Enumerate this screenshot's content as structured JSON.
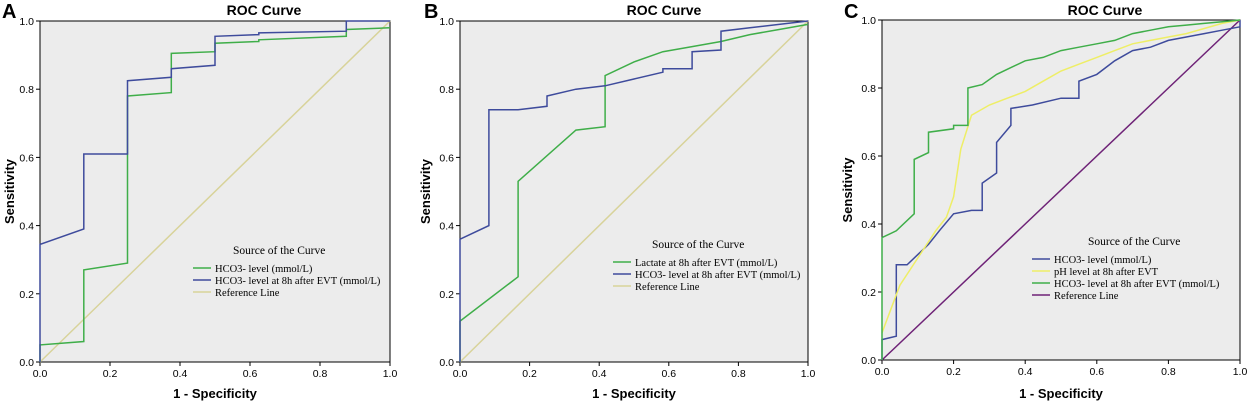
{
  "chart_data": [
    {
      "type": "line",
      "panel_label": "A",
      "title": "ROC Curve",
      "xlabel": "1 - Specificity",
      "ylabel": "Sensitivity",
      "xlim": [
        0,
        1
      ],
      "ylim": [
        0,
        1
      ],
      "xticks": [
        "0.0",
        "0.2",
        "0.4",
        "0.6",
        "0.8",
        "1.0"
      ],
      "yticks": [
        "0.0",
        "0.2",
        "0.4",
        "0.6",
        "0.8",
        "1.0"
      ],
      "legend_title": "Source of the Curve",
      "legend_position": "bottom-right",
      "background": "#ececec",
      "series": [
        {
          "name": "HCO3- level (mmol/L)",
          "color": "#3fae49",
          "x": [
            0,
            0,
            0.125,
            0.125,
            0.25,
            0.25,
            0.375,
            0.375,
            0.5,
            0.5,
            0.625,
            0.625,
            0.875,
            0.875,
            1.0
          ],
          "y": [
            0,
            0.05,
            0.06,
            0.27,
            0.29,
            0.78,
            0.79,
            0.905,
            0.91,
            0.935,
            0.94,
            0.945,
            0.955,
            0.975,
            0.98
          ]
        },
        {
          "name": "HCO3- level at 8h after EVT (mmol/L)",
          "color": "#3e4b9c",
          "x": [
            0,
            0,
            0.125,
            0.125,
            0.25,
            0.25,
            0.375,
            0.375,
            0.5,
            0.5,
            0.625,
            0.625,
            0.875,
            0.875,
            1.0
          ],
          "y": [
            0,
            0.345,
            0.39,
            0.61,
            0.61,
            0.825,
            0.835,
            0.86,
            0.87,
            0.955,
            0.96,
            0.965,
            0.97,
            1.0,
            1.0
          ]
        },
        {
          "name": "Reference Line",
          "color": "#d8d39a",
          "x": [
            0,
            1
          ],
          "y": [
            0,
            1
          ]
        }
      ]
    },
    {
      "type": "line",
      "panel_label": "B",
      "title": "ROC Curve",
      "xlabel": "1 - Specificity",
      "ylabel": "Sensitivity",
      "xlim": [
        0,
        1
      ],
      "ylim": [
        0,
        1
      ],
      "xticks": [
        "0.0",
        "0.2",
        "0.4",
        "0.6",
        "0.8",
        "1.0"
      ],
      "yticks": [
        "0.0",
        "0.2",
        "0.4",
        "0.6",
        "0.8",
        "1.0"
      ],
      "legend_title": "Source of the Curve",
      "legend_position": "bottom-right",
      "background": "#ececec",
      "series": [
        {
          "name": "Lactate at 8h after EVT (mmol/L)",
          "color": "#3fae49",
          "x": [
            0,
            0,
            0.167,
            0.167,
            0.333,
            0.417,
            0.417,
            0.5,
            0.583,
            0.667,
            0.75,
            0.833,
            0.917,
            1.0
          ],
          "y": [
            0,
            0.12,
            0.25,
            0.53,
            0.68,
            0.69,
            0.84,
            0.88,
            0.91,
            0.925,
            0.94,
            0.96,
            0.975,
            0.99
          ]
        },
        {
          "name": "HCO3- level at 8h after EVT (mmol/L)",
          "color": "#3e4b9c",
          "x": [
            0,
            0,
            0.083,
            0.083,
            0.167,
            0.25,
            0.25,
            0.333,
            0.417,
            0.5,
            0.583,
            0.583,
            0.667,
            0.667,
            0.75,
            0.75,
            0.833,
            1.0
          ],
          "y": [
            0,
            0.36,
            0.4,
            0.74,
            0.74,
            0.75,
            0.78,
            0.8,
            0.81,
            0.83,
            0.85,
            0.86,
            0.86,
            0.91,
            0.915,
            0.97,
            0.98,
            1.0
          ]
        },
        {
          "name": "Reference Line",
          "color": "#d8d39a",
          "x": [
            0,
            1
          ],
          "y": [
            0,
            1
          ]
        }
      ]
    },
    {
      "type": "line",
      "panel_label": "C",
      "title": "ROC Curve",
      "xlabel": "1 - Specificity",
      "ylabel": "Sensitivity",
      "xlim": [
        0,
        1
      ],
      "ylim": [
        0,
        1
      ],
      "xticks": [
        "0.0",
        "0.2",
        "0.4",
        "0.6",
        "0.8",
        "1.0"
      ],
      "yticks": [
        "0.0",
        "0.2",
        "0.4",
        "0.6",
        "0.8",
        "1.0"
      ],
      "legend_title": "Source of the Curve",
      "legend_position": "bottom-right",
      "background": "#ececec",
      "series": [
        {
          "name": "HCO3- level (mmol/L)",
          "color": "#3e4b9c",
          "x": [
            0,
            0,
            0.04,
            0.04,
            0.07,
            0.1,
            0.13,
            0.16,
            0.2,
            0.25,
            0.28,
            0.28,
            0.32,
            0.32,
            0.36,
            0.36,
            0.42,
            0.5,
            0.55,
            0.55,
            0.6,
            0.65,
            0.7,
            0.75,
            0.8,
            0.85,
            0.9,
            0.95,
            1.0,
            1.0
          ],
          "y": [
            0,
            0.06,
            0.07,
            0.28,
            0.28,
            0.31,
            0.34,
            0.38,
            0.43,
            0.44,
            0.44,
            0.52,
            0.55,
            0.64,
            0.69,
            0.74,
            0.75,
            0.77,
            0.77,
            0.82,
            0.84,
            0.88,
            0.91,
            0.92,
            0.94,
            0.95,
            0.96,
            0.97,
            0.98,
            1.0
          ]
        },
        {
          "name": "pH level at 8h after EVT",
          "color": "#eeee66",
          "x": [
            0,
            0.05,
            0.1,
            0.15,
            0.18,
            0.2,
            0.22,
            0.25,
            0.3,
            0.35,
            0.4,
            0.45,
            0.5,
            0.55,
            0.6,
            0.65,
            0.7,
            0.75,
            0.8,
            0.85,
            0.9,
            0.95,
            1.0
          ],
          "y": [
            0.08,
            0.22,
            0.3,
            0.38,
            0.42,
            0.48,
            0.62,
            0.72,
            0.75,
            0.77,
            0.79,
            0.82,
            0.85,
            0.87,
            0.89,
            0.91,
            0.93,
            0.94,
            0.95,
            0.96,
            0.975,
            0.99,
            1.0
          ]
        },
        {
          "name": "HCO3- level at 8h after EVT (mmol/L)",
          "color": "#3fae49",
          "x": [
            0,
            0,
            0.04,
            0.09,
            0.09,
            0.13,
            0.13,
            0.2,
            0.2,
            0.24,
            0.24,
            0.28,
            0.32,
            0.36,
            0.4,
            0.45,
            0.5,
            0.55,
            0.6,
            0.65,
            0.7,
            0.75,
            0.8,
            0.85,
            0.9,
            0.95,
            1.0
          ],
          "y": [
            0,
            0.36,
            0.38,
            0.43,
            0.59,
            0.61,
            0.67,
            0.68,
            0.69,
            0.69,
            0.8,
            0.81,
            0.84,
            0.86,
            0.88,
            0.89,
            0.91,
            0.92,
            0.93,
            0.94,
            0.96,
            0.97,
            0.98,
            0.985,
            0.99,
            0.995,
            1.0
          ]
        },
        {
          "name": "Reference Line",
          "color": "#6e2277",
          "x": [
            0,
            1
          ],
          "y": [
            0,
            1
          ]
        }
      ]
    }
  ]
}
